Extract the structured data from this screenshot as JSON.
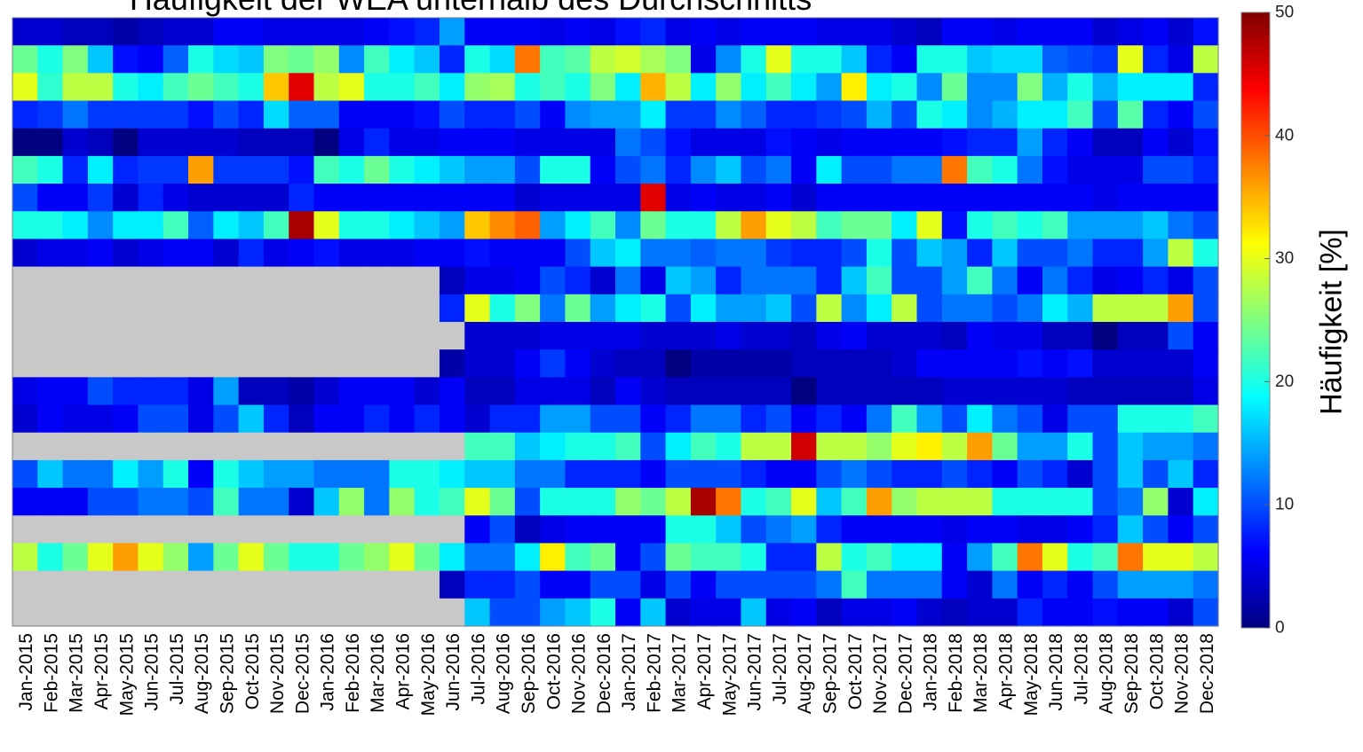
{
  "chart_data": {
    "type": "heatmap",
    "title": "Häufigkeit der WEA unterhalb des Durchschnitts",
    "x_categories": [
      "Jan-2015",
      "Feb-2015",
      "Mar-2015",
      "Apr-2015",
      "May-2015",
      "Jun-2015",
      "Jul-2015",
      "Aug-2015",
      "Sep-2015",
      "Oct-2015",
      "Nov-2015",
      "Dec-2015",
      "Jan-2016",
      "Feb-2016",
      "Mar-2016",
      "Apr-2016",
      "May-2016",
      "Jun-2016",
      "Jul-2016",
      "Aug-2016",
      "Sep-2016",
      "Oct-2016",
      "Nov-2016",
      "Dec-2016",
      "Jan-2017",
      "Feb-2017",
      "Mar-2017",
      "Apr-2017",
      "May-2017",
      "Jun-2017",
      "Jul-2017",
      "Aug-2017",
      "Sep-2017",
      "Oct-2017",
      "Nov-2017",
      "Dec-2017",
      "Jan-2018",
      "Feb-2018",
      "Mar-2018",
      "Apr-2018",
      "May-2018",
      "Jun-2018",
      "Jul-2018",
      "Aug-2018",
      "Sep-2018",
      "Oct-2018",
      "Nov-2018",
      "Dec-2018"
    ],
    "colorbar": {
      "label": "Häufigkeit [%]",
      "min": 0,
      "max": 50,
      "ticks": [
        0,
        10,
        20,
        30,
        40,
        50
      ],
      "colormap": "jet"
    },
    "missing_color": "#c8c8c8",
    "values": [
      [
        4,
        4,
        3,
        3,
        2,
        3,
        4,
        4,
        6,
        6,
        5,
        5,
        5,
        5,
        6,
        7,
        8,
        14,
        6,
        6,
        6,
        5,
        6,
        5,
        7,
        8,
        5,
        6,
        5,
        6,
        6,
        6,
        5,
        5,
        5,
        4,
        3,
        6,
        6,
        5,
        6,
        6,
        6,
        4,
        5,
        6,
        4,
        7
      ],
      [
        24,
        20,
        25,
        16,
        7,
        6,
        11,
        20,
        17,
        16,
        25,
        24,
        26,
        13,
        22,
        18,
        16,
        8,
        20,
        17,
        38,
        22,
        23,
        28,
        29,
        27,
        25,
        5,
        13,
        20,
        30,
        20,
        20,
        16,
        8,
        6,
        20,
        20,
        16,
        17,
        17,
        11,
        10,
        9,
        30,
        8,
        5,
        28
      ],
      [
        30,
        21,
        28,
        28,
        20,
        18,
        22,
        24,
        22,
        20,
        34,
        45,
        28,
        30,
        20,
        20,
        22,
        18,
        26,
        27,
        20,
        22,
        20,
        25,
        18,
        35,
        28,
        18,
        26,
        18,
        22,
        18,
        14,
        32,
        18,
        20,
        13,
        24,
        13,
        13,
        25,
        15,
        20,
        15,
        18,
        18,
        18,
        8
      ],
      [
        8,
        9,
        12,
        9,
        9,
        9,
        9,
        7,
        10,
        8,
        17,
        11,
        11,
        6,
        6,
        6,
        7,
        10,
        8,
        8,
        10,
        6,
        13,
        14,
        14,
        18,
        9,
        9,
        13,
        11,
        8,
        8,
        9,
        10,
        15,
        10,
        20,
        18,
        13,
        15,
        18,
        18,
        22,
        10,
        23,
        8,
        6,
        10
      ],
      [
        0,
        0,
        4,
        3,
        0,
        4,
        4,
        4,
        4,
        3,
        3,
        3,
        0,
        5,
        8,
        5,
        5,
        6,
        6,
        6,
        5,
        5,
        5,
        5,
        12,
        10,
        7,
        5,
        5,
        5,
        7,
        6,
        5,
        6,
        6,
        6,
        6,
        7,
        8,
        8,
        14,
        8,
        6,
        3,
        3,
        6,
        4,
        7
      ],
      [
        22,
        20,
        8,
        18,
        8,
        9,
        9,
        36,
        9,
        9,
        9,
        7,
        22,
        20,
        24,
        20,
        18,
        16,
        14,
        14,
        10,
        20,
        20,
        6,
        10,
        12,
        8,
        13,
        16,
        10,
        12,
        6,
        18,
        10,
        10,
        12,
        12,
        38,
        22,
        20,
        12,
        7,
        5,
        5,
        5,
        10,
        10,
        8
      ],
      [
        10,
        6,
        6,
        9,
        4,
        8,
        5,
        4,
        4,
        4,
        4,
        8,
        6,
        6,
        6,
        6,
        6,
        6,
        6,
        6,
        4,
        5,
        5,
        5,
        5,
        45,
        5,
        6,
        5,
        5,
        6,
        4,
        6,
        6,
        6,
        6,
        6,
        6,
        6,
        6,
        6,
        6,
        6,
        5,
        6,
        6,
        6,
        6
      ],
      [
        20,
        20,
        18,
        13,
        18,
        18,
        22,
        11,
        18,
        16,
        22,
        48,
        30,
        20,
        20,
        18,
        16,
        14,
        34,
        37,
        39,
        14,
        18,
        22,
        13,
        24,
        20,
        20,
        28,
        36,
        30,
        28,
        22,
        24,
        24,
        18,
        30,
        7,
        20,
        22,
        20,
        22,
        14,
        14,
        14,
        16,
        12,
        10
      ],
      [
        4,
        5,
        5,
        6,
        4,
        5,
        6,
        6,
        4,
        8,
        5,
        6,
        7,
        5,
        5,
        5,
        6,
        6,
        7,
        6,
        6,
        6,
        10,
        16,
        18,
        12,
        12,
        11,
        12,
        12,
        9,
        8,
        8,
        10,
        20,
        10,
        16,
        14,
        8,
        16,
        10,
        10,
        12,
        8,
        8,
        14,
        28,
        20
      ],
      [
        null,
        null,
        null,
        null,
        null,
        null,
        null,
        null,
        null,
        null,
        null,
        null,
        null,
        null,
        null,
        null,
        null,
        3,
        5,
        5,
        6,
        10,
        8,
        4,
        12,
        5,
        16,
        14,
        8,
        12,
        12,
        12,
        8,
        16,
        22,
        10,
        10,
        14,
        22,
        12,
        6,
        12,
        8,
        5,
        6,
        8,
        5,
        10
      ],
      [
        null,
        null,
        null,
        null,
        null,
        null,
        null,
        null,
        null,
        null,
        null,
        null,
        null,
        null,
        null,
        null,
        null,
        8,
        30,
        20,
        25,
        12,
        24,
        14,
        18,
        20,
        10,
        18,
        14,
        14,
        16,
        10,
        28,
        13,
        18,
        28,
        10,
        12,
        12,
        10,
        12,
        18,
        15,
        28,
        28,
        28,
        36,
        10
      ],
      [
        null,
        null,
        null,
        null,
        null,
        null,
        null,
        null,
        null,
        null,
        null,
        null,
        null,
        null,
        null,
        null,
        null,
        null,
        4,
        4,
        4,
        5,
        5,
        5,
        5,
        4,
        4,
        4,
        5,
        4,
        4,
        3,
        5,
        6,
        4,
        4,
        4,
        3,
        6,
        5,
        5,
        3,
        3,
        0,
        3,
        3,
        10,
        6
      ],
      [
        null,
        null,
        null,
        null,
        null,
        null,
        null,
        null,
        null,
        null,
        null,
        null,
        null,
        null,
        null,
        null,
        null,
        2,
        4,
        4,
        6,
        9,
        6,
        4,
        3,
        3,
        0,
        2,
        2,
        2,
        2,
        3,
        3,
        3,
        3,
        4,
        6,
        6,
        6,
        6,
        7,
        6,
        7,
        4,
        4,
        4,
        4,
        6
      ],
      [
        5,
        6,
        6,
        10,
        8,
        8,
        8,
        5,
        14,
        3,
        3,
        2,
        4,
        6,
        6,
        6,
        4,
        6,
        3,
        3,
        5,
        5,
        5,
        3,
        6,
        4,
        3,
        3,
        3,
        3,
        3,
        0,
        3,
        3,
        3,
        3,
        3,
        4,
        4,
        4,
        4,
        4,
        3,
        3,
        3,
        3,
        3,
        5
      ],
      [
        4,
        6,
        5,
        5,
        6,
        10,
        10,
        5,
        10,
        16,
        8,
        3,
        6,
        6,
        8,
        6,
        8,
        6,
        4,
        8,
        8,
        14,
        14,
        10,
        10,
        6,
        8,
        12,
        12,
        8,
        10,
        6,
        8,
        6,
        12,
        22,
        14,
        10,
        18,
        12,
        10,
        5,
        10,
        10,
        20,
        20,
        20,
        22
      ],
      [
        null,
        null,
        null,
        null,
        null,
        null,
        null,
        null,
        null,
        null,
        null,
        null,
        null,
        null,
        null,
        null,
        null,
        null,
        22,
        22,
        16,
        18,
        20,
        20,
        22,
        10,
        18,
        22,
        20,
        28,
        28,
        46,
        28,
        28,
        26,
        30,
        32,
        28,
        36,
        24,
        14,
        14,
        20,
        10,
        16,
        14,
        14,
        12
      ],
      [
        10,
        16,
        12,
        12,
        18,
        14,
        20,
        6,
        20,
        16,
        14,
        14,
        12,
        12,
        12,
        20,
        20,
        18,
        16,
        16,
        12,
        12,
        8,
        8,
        8,
        6,
        10,
        10,
        10,
        8,
        6,
        6,
        10,
        12,
        10,
        8,
        8,
        10,
        8,
        6,
        10,
        8,
        4,
        10,
        16,
        10,
        16,
        8
      ],
      [
        6,
        6,
        6,
        10,
        10,
        12,
        12,
        10,
        22,
        12,
        12,
        4,
        16,
        26,
        12,
        26,
        20,
        22,
        30,
        24,
        10,
        20,
        20,
        20,
        26,
        24,
        28,
        48,
        38,
        20,
        22,
        30,
        16,
        22,
        36,
        26,
        28,
        28,
        28,
        20,
        20,
        20,
        20,
        10,
        12,
        26,
        4,
        18
      ],
      [
        null,
        null,
        null,
        null,
        null,
        null,
        null,
        null,
        null,
        null,
        null,
        null,
        null,
        null,
        null,
        null,
        null,
        null,
        6,
        10,
        3,
        5,
        6,
        6,
        6,
        6,
        20,
        20,
        16,
        10,
        12,
        14,
        8,
        6,
        6,
        6,
        6,
        5,
        6,
        6,
        5,
        5,
        6,
        8,
        16,
        10,
        6,
        10
      ],
      [
        28,
        20,
        24,
        30,
        36,
        30,
        26,
        14,
        24,
        30,
        24,
        20,
        20,
        24,
        26,
        30,
        24,
        18,
        12,
        12,
        18,
        32,
        22,
        24,
        6,
        10,
        24,
        22,
        22,
        20,
        8,
        8,
        28,
        20,
        22,
        18,
        18,
        6,
        14,
        22,
        38,
        30,
        20,
        22,
        38,
        30,
        30,
        28
      ],
      [
        null,
        null,
        null,
        null,
        null,
        null,
        null,
        null,
        null,
        null,
        null,
        null,
        null,
        null,
        null,
        null,
        null,
        3,
        8,
        8,
        10,
        6,
        6,
        10,
        10,
        5,
        10,
        6,
        10,
        10,
        10,
        10,
        12,
        22,
        12,
        12,
        12,
        6,
        4,
        12,
        6,
        8,
        6,
        10,
        14,
        14,
        14,
        12
      ],
      [
        null,
        null,
        null,
        null,
        null,
        null,
        null,
        null,
        null,
        null,
        null,
        null,
        null,
        null,
        null,
        null,
        null,
        null,
        16,
        10,
        10,
        14,
        16,
        20,
        6,
        16,
        4,
        5,
        5,
        16,
        5,
        6,
        3,
        5,
        5,
        6,
        4,
        3,
        4,
        4,
        8,
        6,
        6,
        7,
        6,
        6,
        4,
        10
      ]
    ]
  }
}
